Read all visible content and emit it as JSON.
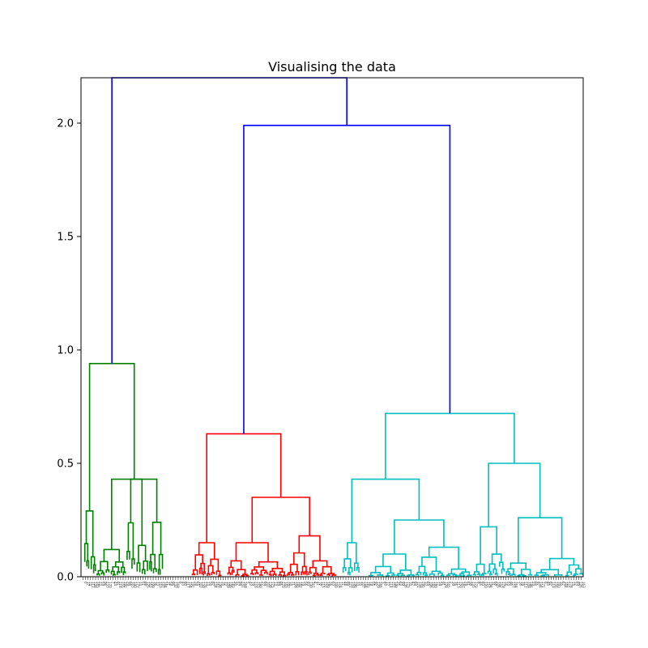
{
  "chart_data": {
    "type": "dendrogram",
    "title": "Visualising the data",
    "xlabel": "",
    "ylabel": "",
    "ylim": [
      0,
      2.2
    ],
    "yticks": [
      {
        "value": 0.0,
        "label": "0.0"
      },
      {
        "value": 0.5,
        "label": "0.5"
      },
      {
        "value": 1.0,
        "label": "1.0"
      },
      {
        "value": 1.5,
        "label": "1.5"
      },
      {
        "value": 2.0,
        "label": "2.0"
      }
    ],
    "grid": false,
    "colors": {
      "root": "#0000ff",
      "cluster1": "#008000",
      "cluster2": "#ff0000",
      "cluster3": "#00bfbf"
    },
    "clusters": [
      {
        "color": "#008000",
        "x_range": [
          0,
          0.17
        ],
        "merge_height": 0.94
      },
      {
        "color": "#ff0000",
        "x_range": [
          0.22,
          0.51
        ],
        "merge_height": 0.63
      },
      {
        "color": "#00bfbf",
        "x_range": [
          0.52,
          1.0
        ],
        "merge_height": 0.72
      }
    ],
    "merges": [
      {
        "height": 2.2,
        "color": "#0000ff",
        "left": 0.073,
        "right": 0.524,
        "left_h": 0.94,
        "right_h": 1.99
      },
      {
        "height": 1.99,
        "color": "#0000ff",
        "left": 0.325,
        "right": 0.723,
        "left_h": 0.63,
        "right_h": 0.72
      }
    ],
    "leaf_count": 200
  }
}
